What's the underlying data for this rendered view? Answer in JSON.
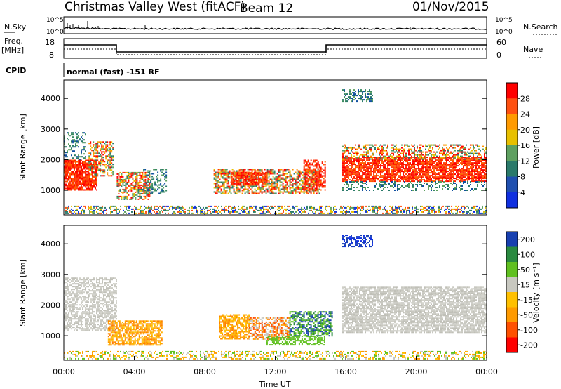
{
  "header": {
    "title": "Christmas Valley West (fitACF)",
    "beam": "Beam 12",
    "date": "01/Nov/2015"
  },
  "params_panel": {
    "nsky_label": "N.Sky",
    "nsky_ticks": [
      "10^5",
      "10^0"
    ],
    "nsearch_label": "N.Search",
    "nsearch_ticks": [
      "10^5",
      "10^0"
    ],
    "freq_label_1": "Freq.",
    "freq_label_2": "[MHz]",
    "freq_ticks": [
      "18",
      "8"
    ],
    "nave_label": "Nave",
    "nave_ticks": [
      "60",
      "0"
    ],
    "cpid_label": "CPID",
    "cpid_text": "normal (fast) -151 RF"
  },
  "colors": {
    "power_scale": [
      "#1030e0",
      "#2050b0",
      "#2a7a6a",
      "#5ea060",
      "#e8c000",
      "#ff9a00",
      "#ff5010",
      "#ff0000"
    ],
    "velocity_scale": [
      "#ff0000",
      "#ff5000",
      "#ff9a00",
      "#ffc000",
      "#c8c8c0",
      "#60c020",
      "#2a8a40",
      "#1840b0"
    ]
  },
  "chart_data": [
    {
      "type": "heatmap",
      "name": "power",
      "ylabel": "Slant Range [km]",
      "yticks": [
        1000,
        2000,
        3000,
        4000
      ],
      "ylim": [
        200,
        4600
      ],
      "colorbar_label": "Power [dB]",
      "colorbar_ticks": [
        "28",
        "24",
        "20",
        "16",
        "12",
        "8",
        "4"
      ],
      "colorbar_range": [
        0,
        30
      ]
    },
    {
      "type": "heatmap",
      "name": "velocity",
      "ylabel": "Slant Range [km]",
      "yticks": [
        1000,
        2000,
        3000,
        4000
      ],
      "ylim": [
        200,
        4600
      ],
      "colorbar_label": "Velocity [m s⁻¹]",
      "colorbar_ticks": [
        "200",
        "100",
        "50",
        "15",
        "-15",
        "-50",
        "-100",
        "-200"
      ],
      "colorbar_range": [
        -250,
        250
      ]
    }
  ],
  "xaxis": {
    "label": "Time UT",
    "ticks": [
      "00:00",
      "04:00",
      "08:00",
      "12:00",
      "16:00",
      "20:00",
      "00:00"
    ]
  }
}
